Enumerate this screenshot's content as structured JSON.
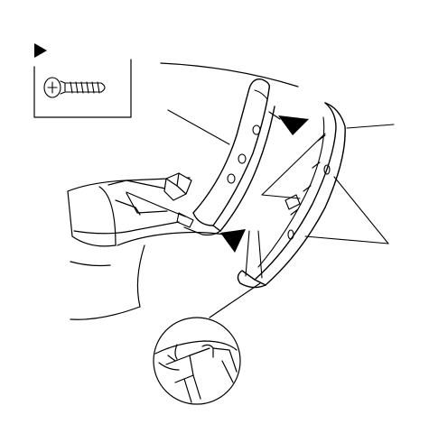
{
  "diagram": {
    "kind": "exploded-view line drawing (trim panel removal)",
    "labels": [],
    "icons": {
      "legend_marker": "filled-triangle-icon",
      "fastener": "pan-head-screw-icon",
      "clip_indicator": "filled-triangle-icon"
    },
    "colors": {
      "ink": "#000000",
      "paper": "#ffffff"
    },
    "counts": {
      "screw_triangle_markers": 3,
      "leader_lines": 4,
      "detail_callouts": 1
    }
  }
}
